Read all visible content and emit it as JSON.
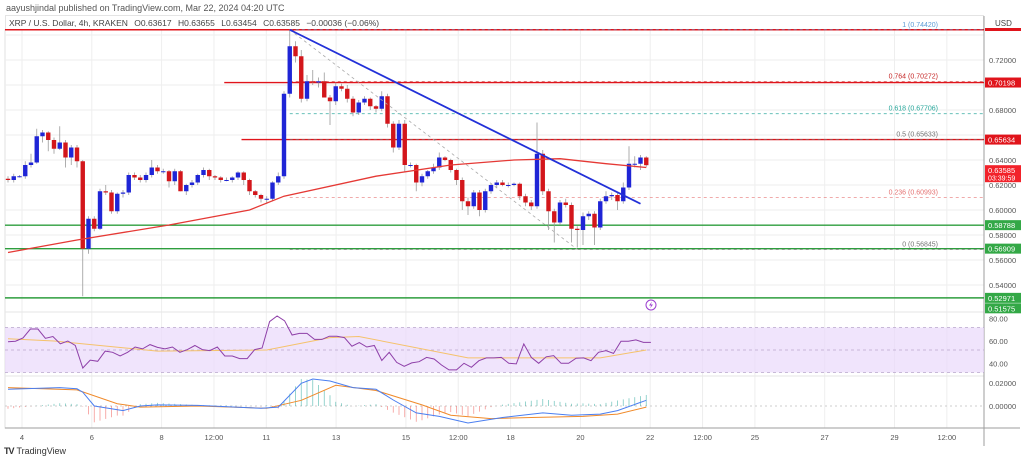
{
  "header": {
    "published": "aayushjindal published on TradingView.com, Mar 22, 2024 04:20 UTC",
    "symbol": "XRP / U.S. Dollar, 4h, KRAKEN",
    "open": "O0.63617",
    "high": "H0.63655",
    "low": "L0.63454",
    "close": "C0.63585",
    "change": "−0.00036 (−0.06%)"
  },
  "footer": {
    "logo_text": "TradingView"
  },
  "chart_data": {
    "type": "candlestick",
    "symbol": "XRP/USD",
    "interval": "4h",
    "currency": "USD",
    "colors": {
      "up": "#1f25d6",
      "down": "#d3161b",
      "ma": "#e53935",
      "trendline": "#2230d8",
      "resistance": "#e0141b",
      "support": "#2e9e3e",
      "rsi": "#8e3fa8",
      "rsi_ma": "#f5c26b",
      "rsi_band": "#ead8fb",
      "macd": "#4a7ef0",
      "signal": "#f08a2a"
    },
    "price_axis": {
      "ticks": [
        "0.72000",
        "0.68000",
        "0.64000",
        "0.62000",
        "0.60000",
        "0.58000",
        "0.56000",
        "0.54000"
      ],
      "range": [
        0.512,
        0.748
      ]
    },
    "time_axis": {
      "ticks": [
        {
          "label": "4",
          "day": 4
        },
        {
          "label": "6",
          "day": 6
        },
        {
          "label": "8",
          "day": 8
        },
        {
          "label": "12:00",
          "day": 9.5
        },
        {
          "label": "11",
          "day": 11
        },
        {
          "label": "13",
          "day": 13
        },
        {
          "label": "15",
          "day": 15
        },
        {
          "label": "12:00",
          "day": 16.5
        },
        {
          "label": "18",
          "day": 18
        },
        {
          "label": "20",
          "day": 20
        },
        {
          "label": "22",
          "day": 22
        },
        {
          "label": "12:00",
          "day": 23.5
        },
        {
          "label": "25",
          "day": 25
        },
        {
          "label": "27",
          "day": 27
        },
        {
          "label": "29",
          "day": 29
        },
        {
          "label": "12:00",
          "day": 30.5
        }
      ]
    },
    "ohlc": [
      [
        0.625,
        0.627,
        0.622,
        0.624
      ],
      [
        0.624,
        0.629,
        0.622,
        0.627
      ],
      [
        0.627,
        0.628,
        0.626,
        0.627
      ],
      [
        0.627,
        0.639,
        0.625,
        0.636
      ],
      [
        0.636,
        0.645,
        0.634,
        0.638
      ],
      [
        0.638,
        0.665,
        0.637,
        0.659
      ],
      [
        0.659,
        0.664,
        0.654,
        0.662
      ],
      [
        0.662,
        0.663,
        0.647,
        0.656
      ],
      [
        0.656,
        0.658,
        0.645,
        0.649
      ],
      [
        0.649,
        0.667,
        0.648,
        0.654
      ],
      [
        0.654,
        0.656,
        0.634,
        0.642
      ],
      [
        0.642,
        0.652,
        0.636,
        0.65
      ],
      [
        0.65,
        0.652,
        0.634,
        0.639
      ],
      [
        0.639,
        0.64,
        0.531,
        0.569
      ],
      [
        0.569,
        0.595,
        0.565,
        0.593
      ],
      [
        0.593,
        0.595,
        0.583,
        0.585
      ],
      [
        0.585,
        0.617,
        0.584,
        0.615
      ],
      [
        0.615,
        0.62,
        0.612,
        0.614
      ],
      [
        0.614,
        0.616,
        0.597,
        0.599
      ],
      [
        0.599,
        0.614,
        0.597,
        0.613
      ],
      [
        0.613,
        0.616,
        0.61,
        0.614
      ],
      [
        0.614,
        0.63,
        0.612,
        0.628
      ],
      [
        0.628,
        0.63,
        0.624,
        0.626
      ],
      [
        0.626,
        0.628,
        0.622,
        0.624
      ],
      [
        0.624,
        0.63,
        0.622,
        0.628
      ],
      [
        0.628,
        0.64,
        0.626,
        0.634
      ],
      [
        0.634,
        0.636,
        0.629,
        0.631
      ],
      [
        0.631,
        0.633,
        0.629,
        0.631
      ],
      [
        0.631,
        0.632,
        0.618,
        0.623
      ],
      [
        0.623,
        0.633,
        0.62,
        0.631
      ],
      [
        0.631,
        0.632,
        0.615,
        0.615
      ],
      [
        0.615,
        0.621,
        0.612,
        0.62
      ],
      [
        0.62,
        0.624,
        0.618,
        0.622
      ],
      [
        0.622,
        0.629,
        0.62,
        0.628
      ],
      [
        0.628,
        0.634,
        0.626,
        0.632
      ],
      [
        0.632,
        0.633,
        0.624,
        0.627
      ],
      [
        0.627,
        0.628,
        0.624,
        0.626
      ],
      [
        0.626,
        0.627,
        0.622,
        0.624
      ],
      [
        0.624,
        0.626,
        0.623,
        0.624
      ],
      [
        0.624,
        0.627,
        0.622,
        0.626
      ],
      [
        0.626,
        0.631,
        0.624,
        0.63
      ],
      [
        0.63,
        0.631,
        0.62,
        0.624
      ],
      [
        0.624,
        0.625,
        0.612,
        0.615
      ],
      [
        0.615,
        0.616,
        0.61,
        0.612
      ],
      [
        0.612,
        0.613,
        0.606,
        0.609
      ],
      [
        0.609,
        0.611,
        0.605,
        0.609
      ],
      [
        0.609,
        0.623,
        0.607,
        0.622
      ],
      [
        0.622,
        0.63,
        0.62,
        0.627
      ],
      [
        0.627,
        0.695,
        0.625,
        0.693
      ],
      [
        0.693,
        0.7442,
        0.69,
        0.731
      ],
      [
        0.731,
        0.735,
        0.718,
        0.723
      ],
      [
        0.723,
        0.728,
        0.686,
        0.689
      ],
      [
        0.689,
        0.708,
        0.687,
        0.703
      ],
      [
        0.703,
        0.712,
        0.7,
        0.702
      ],
      [
        0.702,
        0.706,
        0.698,
        0.703
      ],
      [
        0.703,
        0.71,
        0.69,
        0.69
      ],
      [
        0.69,
        0.692,
        0.668,
        0.687
      ],
      [
        0.687,
        0.702,
        0.684,
        0.699
      ],
      [
        0.699,
        0.701,
        0.695,
        0.697
      ],
      [
        0.697,
        0.7,
        0.686,
        0.689
      ],
      [
        0.689,
        0.691,
        0.675,
        0.678
      ],
      [
        0.678,
        0.688,
        0.676,
        0.686
      ],
      [
        0.686,
        0.691,
        0.684,
        0.689
      ],
      [
        0.689,
        0.69,
        0.68,
        0.683
      ],
      [
        0.683,
        0.684,
        0.678,
        0.681
      ],
      [
        0.681,
        0.695,
        0.679,
        0.691
      ],
      [
        0.691,
        0.693,
        0.666,
        0.669
      ],
      [
        0.669,
        0.671,
        0.646,
        0.65
      ],
      [
        0.65,
        0.672,
        0.648,
        0.669
      ],
      [
        0.669,
        0.672,
        0.63,
        0.636
      ],
      [
        0.636,
        0.638,
        0.634,
        0.636
      ],
      [
        0.636,
        0.637,
        0.615,
        0.622
      ],
      [
        0.622,
        0.629,
        0.619,
        0.627
      ],
      [
        0.627,
        0.632,
        0.625,
        0.631
      ],
      [
        0.631,
        0.637,
        0.629,
        0.634
      ],
      [
        0.634,
        0.646,
        0.632,
        0.642
      ],
      [
        0.642,
        0.643,
        0.639,
        0.64
      ],
      [
        0.64,
        0.641,
        0.63,
        0.632
      ],
      [
        0.632,
        0.633,
        0.62,
        0.624
      ],
      [
        0.624,
        0.626,
        0.6,
        0.607
      ],
      [
        0.607,
        0.61,
        0.596,
        0.603
      ],
      [
        0.603,
        0.616,
        0.601,
        0.614
      ],
      [
        0.614,
        0.616,
        0.595,
        0.6
      ],
      [
        0.6,
        0.617,
        0.598,
        0.615
      ],
      [
        0.615,
        0.621,
        0.613,
        0.62
      ],
      [
        0.62,
        0.624,
        0.618,
        0.622
      ],
      [
        0.622,
        0.624,
        0.619,
        0.62
      ],
      [
        0.62,
        0.622,
        0.618,
        0.62
      ],
      [
        0.62,
        0.622,
        0.619,
        0.621
      ],
      [
        0.621,
        0.622,
        0.608,
        0.611
      ],
      [
        0.611,
        0.613,
        0.603,
        0.606
      ],
      [
        0.606,
        0.608,
        0.6,
        0.603
      ],
      [
        0.603,
        0.67,
        0.601,
        0.645
      ],
      [
        0.645,
        0.648,
        0.612,
        0.615
      ],
      [
        0.615,
        0.617,
        0.584,
        0.599
      ],
      [
        0.599,
        0.601,
        0.574,
        0.59
      ],
      [
        0.59,
        0.608,
        0.588,
        0.606
      ],
      [
        0.606,
        0.609,
        0.602,
        0.604
      ],
      [
        0.604,
        0.606,
        0.574,
        0.585
      ],
      [
        0.585,
        0.587,
        0.57,
        0.584
      ],
      [
        0.584,
        0.598,
        0.572,
        0.595
      ],
      [
        0.595,
        0.599,
        0.592,
        0.597
      ],
      [
        0.597,
        0.599,
        0.572,
        0.586
      ],
      [
        0.586,
        0.609,
        0.584,
        0.607
      ],
      [
        0.607,
        0.615,
        0.605,
        0.611
      ],
      [
        0.611,
        0.614,
        0.608,
        0.612
      ],
      [
        0.612,
        0.614,
        0.6,
        0.607
      ],
      [
        0.607,
        0.622,
        0.605,
        0.618
      ],
      [
        0.618,
        0.651,
        0.616,
        0.637
      ],
      [
        0.637,
        0.643,
        0.634,
        0.637
      ],
      [
        0.637,
        0.644,
        0.632,
        0.642
      ],
      [
        0.642,
        0.643,
        0.6345,
        0.63585
      ]
    ],
    "moving_average": [
      [
        0,
        0.566
      ],
      [
        12,
        0.576
      ],
      [
        28,
        0.588
      ],
      [
        42,
        0.6
      ],
      [
        48,
        0.611
      ],
      [
        64,
        0.627
      ],
      [
        77,
        0.636
      ],
      [
        88,
        0.64
      ],
      [
        96,
        0.641
      ],
      [
        104,
        0.637
      ],
      [
        111,
        0.634
      ]
    ],
    "trendline": {
      "from": [
        49,
        0.7442
      ],
      "to": [
        110,
        0.605
      ]
    },
    "fib_diagonal": {
      "from": [
        49,
        0.7442
      ],
      "to": [
        99,
        0.5685
      ]
    },
    "horizontal_levels": [
      {
        "price": 0.7442,
        "kind": "resistance",
        "from_index": 0
      },
      {
        "price": 0.70198,
        "kind": "resistance",
        "from_index": 39
      },
      {
        "price": 0.65634,
        "kind": "resistance",
        "from_index": 42
      },
      {
        "price": 0.58788,
        "kind": "support",
        "from_index": 0
      },
      {
        "price": 0.56909,
        "kind": "support",
        "from_index": 0
      },
      {
        "price": 0.52971,
        "kind": "support",
        "from_index": 0
      }
    ],
    "fib_levels": [
      {
        "label": "1 (0.74420)",
        "price": 0.7442,
        "color": "#5b9bd5"
      },
      {
        "label": "0.764 (0.70272)",
        "price": 0.70272,
        "color": "#c62828"
      },
      {
        "label": "0.618 (0.67706)",
        "price": 0.67706,
        "color": "#26a69a"
      },
      {
        "label": "0.5 (0.65633)",
        "price": 0.65633,
        "color": "#777777"
      },
      {
        "label": "0.236 (0.60993)",
        "price": 0.60993,
        "color": "#e57373"
      },
      {
        "label": "0 (0.56845)",
        "price": 0.56845,
        "color": "#777777"
      }
    ],
    "price_badges": [
      {
        "label": "0.70198",
        "price": 0.70198,
        "color": "#e0141b"
      },
      {
        "label": "0.65634",
        "price": 0.65634,
        "color": "#e0141b"
      },
      {
        "label": "0.63585",
        "sub": "03:39:59",
        "price": 0.63585,
        "color": "#f2222a"
      },
      {
        "label": "0.58788",
        "price": 0.58788,
        "color": "#33a846"
      },
      {
        "label": "0.56909",
        "price": 0.56909,
        "color": "#33a846"
      },
      {
        "label": "0.52971",
        "price": 0.52971,
        "color": "#33a846"
      },
      {
        "label": "0.51575",
        "price": 0.51575,
        "color": "#33a846"
      }
    ],
    "rsi": {
      "ticks": [
        "80.00",
        "60.00",
        "40.00"
      ],
      "band": [
        30,
        70
      ],
      "range": [
        20,
        82
      ],
      "values": [
        57.4,
        57.8,
        60.7,
        68.7,
        68.7,
        60.4,
        62,
        55.5,
        58,
        54,
        34,
        41,
        40,
        49,
        48,
        44.7,
        48,
        52.7,
        51,
        54.8,
        52.3,
        51,
        52.7,
        48,
        50.4,
        54,
        50.4,
        49.5,
        52.7,
        44.7,
        44.7,
        42.4,
        42.4,
        50.4,
        51.8,
        75.2,
        80.2,
        76,
        63.3,
        64.8,
        64.8,
        59.4,
        59.4,
        62.3,
        62.3,
        61,
        53.4,
        56.6,
        52.7,
        54,
        40.7,
        48,
        39,
        35.5,
        38.5,
        39.6,
        43.4,
        42,
        36.7,
        32.3,
        32.3,
        38.2,
        34.6,
        40.5,
        43,
        43,
        43.4,
        38.2,
        37.6,
        55.4,
        43.4,
        38.2,
        44,
        45,
        38.2,
        38.2,
        42.7,
        43,
        40.5,
        48,
        49.5,
        47,
        57.8,
        57.8,
        59,
        56.8,
        56.8
      ],
      "ma": [
        [
          0,
          60
        ],
        [
          8,
          58
        ],
        [
          26,
          49
        ],
        [
          45,
          50
        ],
        [
          56,
          61
        ],
        [
          61,
          62
        ],
        [
          80,
          43
        ],
        [
          103,
          43
        ],
        [
          111,
          50
        ]
      ]
    },
    "macd": {
      "ticks": [
        "0.02000",
        "0.00000"
      ],
      "range": [
        -0.018,
        0.03
      ],
      "macd": [
        [
          0,
          0.0145
        ],
        [
          9,
          0.016
        ],
        [
          12,
          0.015
        ],
        [
          13,
          0.012
        ],
        [
          15,
          0.0
        ],
        [
          20,
          -0.004
        ],
        [
          23,
          0.0
        ],
        [
          26,
          0.001
        ],
        [
          33,
          0.0005
        ],
        [
          44,
          -0.002
        ],
        [
          47,
          -0.001
        ],
        [
          51,
          0.0197
        ],
        [
          53,
          0.0235
        ],
        [
          56,
          0.0217
        ],
        [
          60,
          0.016
        ],
        [
          64,
          0.0145
        ],
        [
          67,
          0.0052
        ],
        [
          71,
          -0.006
        ],
        [
          75,
          -0.009
        ],
        [
          80,
          -0.0148
        ],
        [
          86,
          -0.01
        ],
        [
          93,
          -0.006
        ],
        [
          98,
          -0.008
        ],
        [
          103,
          -0.007
        ],
        [
          106,
          -0.004
        ],
        [
          111,
          0.005
        ]
      ],
      "signal": [
        [
          0,
          0.016
        ],
        [
          12,
          0.014
        ],
        [
          19,
          0.002
        ],
        [
          23,
          -0.001
        ],
        [
          33,
          0.0
        ],
        [
          45,
          -0.002
        ],
        [
          51,
          0.005
        ],
        [
          57,
          0.018
        ],
        [
          64,
          0.0135
        ],
        [
          72,
          0.001
        ],
        [
          77,
          -0.008
        ],
        [
          84,
          -0.011
        ],
        [
          91,
          -0.01
        ],
        [
          100,
          -0.009
        ],
        [
          106,
          -0.007
        ],
        [
          111,
          -0.001
        ]
      ]
    }
  }
}
